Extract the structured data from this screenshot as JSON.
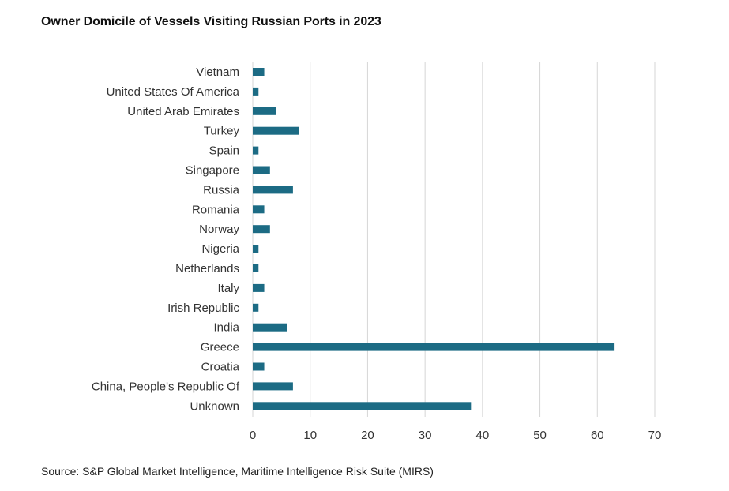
{
  "chart_data": {
    "type": "bar",
    "orientation": "horizontal",
    "title": "Owner Domicile of Vessels Visiting Russian Ports in 2023",
    "source": "Source: S&P Global Market Intelligence, Maritime Intelligence Risk Suite (MIRS)",
    "categories": [
      "Vietnam",
      "United States Of America",
      "United Arab Emirates",
      "Turkey",
      "Spain",
      "Singapore",
      "Russia",
      "Romania",
      "Norway",
      "Nigeria",
      "Netherlands",
      "Italy",
      "Irish Republic",
      "India",
      "Greece",
      "Croatia",
      "China, People's Republic Of",
      "Unknown"
    ],
    "values": [
      2,
      1,
      4,
      8,
      1,
      3,
      7,
      2,
      3,
      1,
      1,
      2,
      1,
      6,
      63,
      2,
      7,
      38
    ],
    "xlabel": "",
    "ylabel": "",
    "xlim": [
      0,
      70
    ],
    "xticks": [
      0,
      10,
      20,
      30,
      40,
      50,
      60,
      70
    ],
    "grid": true,
    "legend": "none",
    "colors": {
      "bar": "#1c6b84",
      "grid": "#d6d6d6"
    }
  }
}
